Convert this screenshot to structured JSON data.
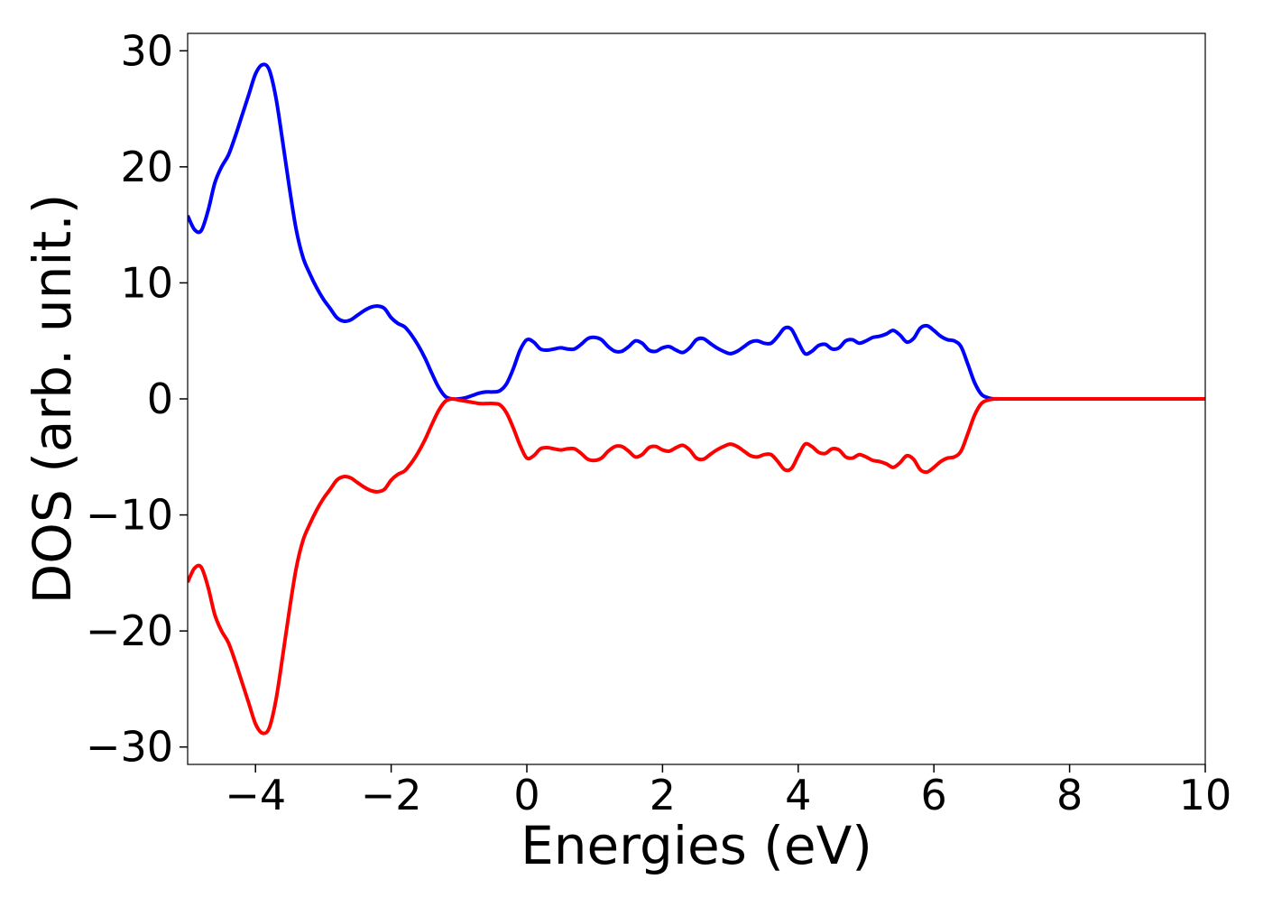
{
  "chart_data": {
    "type": "line",
    "xlabel": "Energies (eV)",
    "ylabel": "DOS (arb. unit.)",
    "xlim": [
      -5,
      10
    ],
    "ylim": [
      -31.5,
      31.5
    ],
    "x_ticks": [
      -4,
      -2,
      0,
      2,
      4,
      6,
      8,
      10
    ],
    "x_tick_labels": [
      "−4",
      "−2",
      "0",
      "2",
      "4",
      "6",
      "8",
      "10"
    ],
    "y_ticks": [
      -30,
      -20,
      -10,
      0,
      10,
      20,
      30
    ],
    "y_tick_labels": [
      "−30",
      "−20",
      "−10",
      "0",
      "10",
      "20",
      "30"
    ],
    "grid": false,
    "series": [
      {
        "color": "#0000ff",
        "x": [
          -5.0,
          -4.9,
          -4.8,
          -4.7,
          -4.6,
          -4.5,
          -4.4,
          -4.3,
          -4.2,
          -4.1,
          -4.0,
          -3.9,
          -3.8,
          -3.7,
          -3.6,
          -3.5,
          -3.4,
          -3.3,
          -3.2,
          -3.1,
          -3.0,
          -2.9,
          -2.8,
          -2.7,
          -2.6,
          -2.5,
          -2.4,
          -2.3,
          -2.2,
          -2.1,
          -2.0,
          -1.9,
          -1.8,
          -1.7,
          -1.6,
          -1.5,
          -1.4,
          -1.3,
          -1.2,
          -1.1,
          -1.0,
          -0.9,
          -0.8,
          -0.7,
          -0.6,
          -0.5,
          -0.4,
          -0.3,
          -0.2,
          -0.1,
          0.0,
          0.1,
          0.2,
          0.3,
          0.4,
          0.5,
          0.6,
          0.7,
          0.8,
          0.9,
          1.0,
          1.1,
          1.2,
          1.3,
          1.4,
          1.5,
          1.6,
          1.7,
          1.8,
          1.9,
          2.0,
          2.1,
          2.2,
          2.3,
          2.4,
          2.5,
          2.6,
          2.7,
          2.8,
          2.9,
          3.0,
          3.1,
          3.2,
          3.3,
          3.4,
          3.5,
          3.6,
          3.7,
          3.8,
          3.9,
          4.0,
          4.1,
          4.2,
          4.3,
          4.4,
          4.5,
          4.6,
          4.7,
          4.8,
          4.9,
          5.0,
          5.1,
          5.2,
          5.3,
          5.4,
          5.5,
          5.6,
          5.7,
          5.8,
          5.9,
          6.0,
          6.1,
          6.2,
          6.3,
          6.4,
          6.5,
          6.6,
          6.7,
          6.8,
          6.9,
          7.0,
          7.1,
          7.2,
          7.3,
          7.4,
          7.5,
          7.6,
          7.7,
          7.8,
          7.9,
          8.0,
          8.1,
          8.2,
          8.3,
          8.4,
          8.5,
          8.6,
          8.7,
          8.8,
          8.9,
          9.0,
          9.1,
          9.2,
          9.3,
          9.4,
          9.5,
          9.6,
          9.7,
          9.8,
          9.9,
          10.0
        ],
        "y": [
          15.8,
          14.6,
          14.5,
          16.2,
          18.6,
          20.0,
          21.0,
          22.6,
          24.4,
          26.2,
          28.0,
          28.8,
          28.4,
          26.0,
          22.2,
          18.2,
          14.6,
          12.2,
          10.8,
          9.6,
          8.6,
          7.8,
          7.0,
          6.7,
          6.8,
          7.2,
          7.6,
          7.9,
          8.0,
          7.8,
          7.0,
          6.5,
          6.2,
          5.5,
          4.6,
          3.5,
          2.2,
          1.0,
          0.2,
          0.0,
          0.0,
          0.1,
          0.3,
          0.5,
          0.6,
          0.6,
          0.7,
          1.3,
          2.6,
          4.2,
          5.1,
          4.9,
          4.3,
          4.2,
          4.3,
          4.4,
          4.3,
          4.3,
          4.7,
          5.2,
          5.3,
          5.1,
          4.5,
          4.1,
          4.1,
          4.5,
          5.0,
          4.8,
          4.2,
          4.1,
          4.4,
          4.5,
          4.2,
          4.0,
          4.4,
          5.1,
          5.2,
          4.8,
          4.4,
          4.1,
          3.9,
          4.1,
          4.5,
          4.9,
          5.0,
          4.8,
          4.8,
          5.4,
          6.1,
          6.0,
          4.9,
          3.9,
          4.1,
          4.6,
          4.7,
          4.3,
          4.4,
          5.0,
          5.1,
          4.8,
          5.0,
          5.3,
          5.4,
          5.6,
          5.9,
          5.5,
          4.9,
          5.2,
          6.1,
          6.3,
          5.9,
          5.4,
          5.1,
          5.0,
          4.5,
          3.0,
          1.4,
          0.4,
          0.1,
          0.0,
          0.0,
          0.0,
          0.0,
          0.0,
          0.0,
          0.0,
          0.0,
          0.0,
          0.0,
          0.0,
          0.0,
          0.0,
          0.0,
          0.0,
          0.0,
          0.0,
          0.0,
          0.0,
          0.0,
          0.0,
          0.0,
          0.0,
          0.0,
          0.0,
          0.0,
          0.0,
          0.0,
          0.0,
          0.0,
          0.0,
          0.0
        ]
      },
      {
        "color": "#ff0000",
        "x": [
          -5.0,
          -4.9,
          -4.8,
          -4.7,
          -4.6,
          -4.5,
          -4.4,
          -4.3,
          -4.2,
          -4.1,
          -4.0,
          -3.9,
          -3.8,
          -3.7,
          -3.6,
          -3.5,
          -3.4,
          -3.3,
          -3.2,
          -3.1,
          -3.0,
          -2.9,
          -2.8,
          -2.7,
          -2.6,
          -2.5,
          -2.4,
          -2.3,
          -2.2,
          -2.1,
          -2.0,
          -1.9,
          -1.8,
          -1.7,
          -1.6,
          -1.5,
          -1.4,
          -1.3,
          -1.2,
          -1.1,
          -1.0,
          -0.9,
          -0.8,
          -0.7,
          -0.6,
          -0.5,
          -0.4,
          -0.3,
          -0.2,
          -0.1,
          0.0,
          0.1,
          0.2,
          0.3,
          0.4,
          0.5,
          0.6,
          0.7,
          0.8,
          0.9,
          1.0,
          1.1,
          1.2,
          1.3,
          1.4,
          1.5,
          1.6,
          1.7,
          1.8,
          1.9,
          2.0,
          2.1,
          2.2,
          2.3,
          2.4,
          2.5,
          2.6,
          2.7,
          2.8,
          2.9,
          3.0,
          3.1,
          3.2,
          3.3,
          3.4,
          3.5,
          3.6,
          3.7,
          3.8,
          3.9,
          4.0,
          4.1,
          4.2,
          4.3,
          4.4,
          4.5,
          4.6,
          4.7,
          4.8,
          4.9,
          5.0,
          5.1,
          5.2,
          5.3,
          5.4,
          5.5,
          5.6,
          5.7,
          5.8,
          5.9,
          6.0,
          6.1,
          6.2,
          6.3,
          6.4,
          6.5,
          6.6,
          6.7,
          6.8,
          6.9,
          7.0,
          7.1,
          7.2,
          7.3,
          7.4,
          7.5,
          7.6,
          7.7,
          7.8,
          7.9,
          8.0,
          8.1,
          8.2,
          8.3,
          8.4,
          8.5,
          8.6,
          8.7,
          8.8,
          8.9,
          9.0,
          9.1,
          9.2,
          9.3,
          9.4,
          9.5,
          9.6,
          9.7,
          9.8,
          9.9,
          10.0
        ],
        "y": [
          -15.8,
          -14.6,
          -14.5,
          -16.2,
          -18.6,
          -20.0,
          -21.0,
          -22.6,
          -24.4,
          -26.2,
          -28.0,
          -28.8,
          -28.4,
          -26.0,
          -22.2,
          -18.2,
          -14.6,
          -12.2,
          -10.8,
          -9.6,
          -8.6,
          -7.8,
          -7.0,
          -6.7,
          -6.8,
          -7.2,
          -7.6,
          -7.9,
          -8.0,
          -7.8,
          -7.0,
          -6.5,
          -6.2,
          -5.5,
          -4.6,
          -3.5,
          -2.2,
          -1.0,
          -0.2,
          0.0,
          -0.1,
          -0.2,
          -0.3,
          -0.4,
          -0.4,
          -0.4,
          -0.5,
          -1.2,
          -2.5,
          -4.0,
          -5.1,
          -4.9,
          -4.3,
          -4.2,
          -4.3,
          -4.4,
          -4.3,
          -4.3,
          -4.7,
          -5.2,
          -5.3,
          -5.1,
          -4.5,
          -4.1,
          -4.1,
          -4.5,
          -5.0,
          -4.8,
          -4.2,
          -4.1,
          -4.4,
          -4.5,
          -4.2,
          -4.0,
          -4.4,
          -5.1,
          -5.2,
          -4.8,
          -4.4,
          -4.1,
          -3.9,
          -4.1,
          -4.5,
          -4.9,
          -5.0,
          -4.8,
          -4.8,
          -5.4,
          -6.1,
          -6.0,
          -4.9,
          -3.9,
          -4.1,
          -4.6,
          -4.7,
          -4.3,
          -4.4,
          -5.0,
          -5.1,
          -4.8,
          -5.0,
          -5.3,
          -5.4,
          -5.6,
          -5.9,
          -5.5,
          -4.9,
          -5.2,
          -6.1,
          -6.3,
          -5.9,
          -5.4,
          -5.1,
          -5.0,
          -4.5,
          -3.0,
          -1.4,
          -0.4,
          -0.1,
          0.0,
          0.0,
          0.0,
          0.0,
          0.0,
          0.0,
          0.0,
          0.0,
          0.0,
          0.0,
          0.0,
          0.0,
          0.0,
          0.0,
          0.0,
          0.0,
          0.0,
          0.0,
          0.0,
          0.0,
          0.0,
          0.0,
          0.0,
          0.0,
          0.0,
          0.0,
          0.0,
          0.0,
          0.0,
          0.0,
          0.0,
          0.0
        ]
      }
    ]
  }
}
